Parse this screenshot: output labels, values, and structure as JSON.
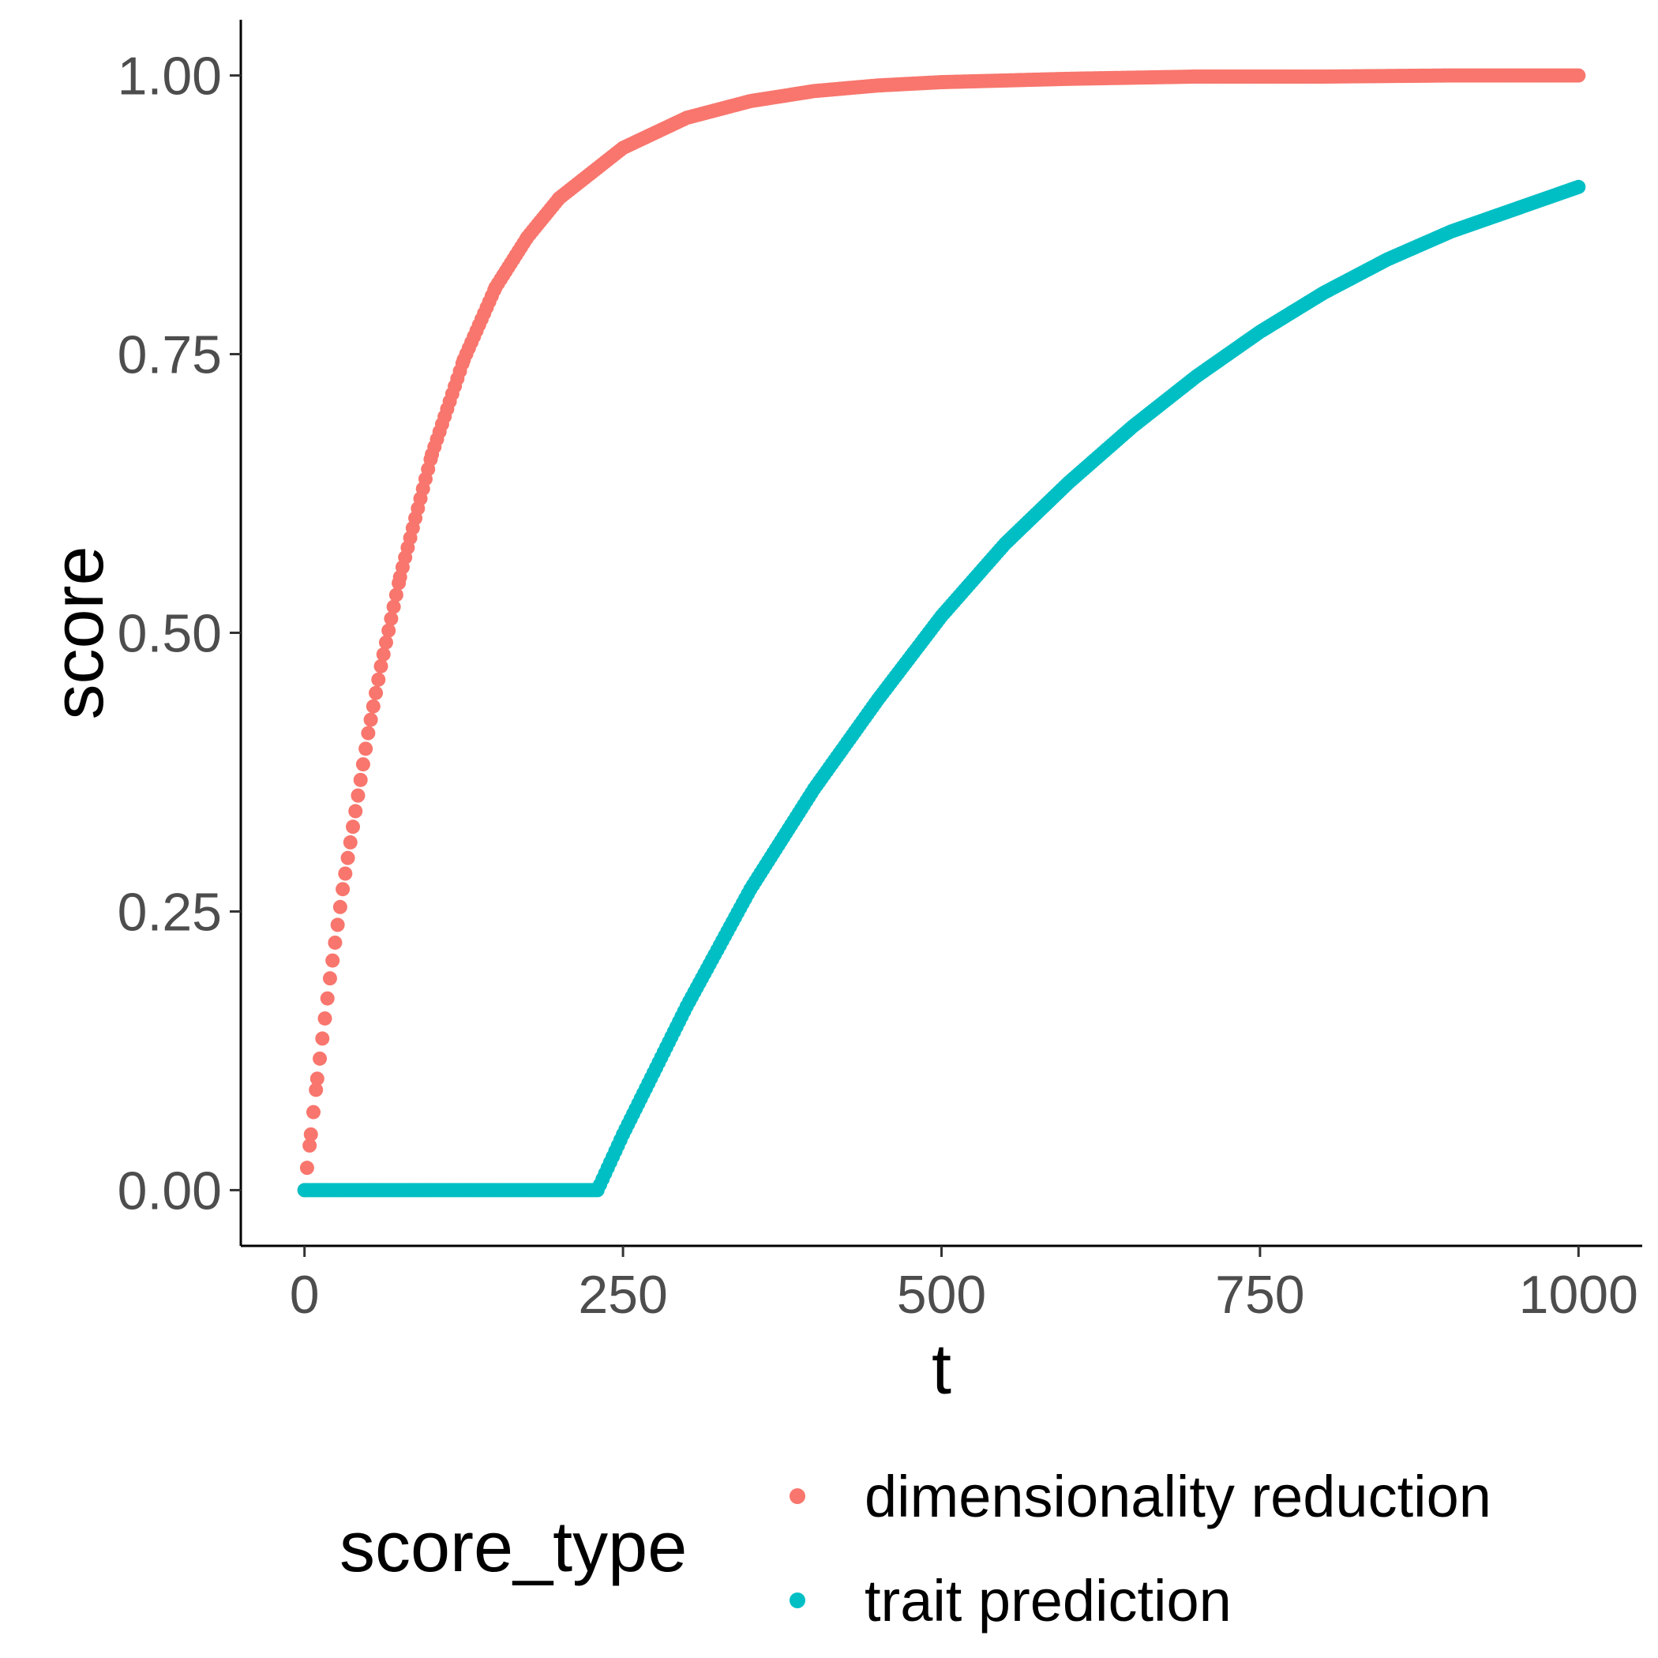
{
  "chart_data": {
    "type": "scatter",
    "xlabel": "t",
    "ylabel": "score",
    "xlim": [
      -50,
      1050
    ],
    "ylim": [
      -0.05,
      1.05
    ],
    "x_ticks": [
      0,
      250,
      500,
      750,
      1000
    ],
    "x_tick_labels": [
      "0",
      "250",
      "500",
      "750",
      "1000"
    ],
    "y_ticks": [
      0,
      0.25,
      0.5,
      0.75,
      1.0
    ],
    "y_tick_labels": [
      "0.00",
      "0.25",
      "0.50",
      "0.75",
      "1.00"
    ],
    "grid": false,
    "legend": {
      "title": "score_type",
      "placement": "bottom"
    },
    "series": [
      {
        "name": "dimensionality reduction",
        "color": "#F8766D",
        "x": [
          0,
          5,
          10,
          20,
          30,
          40,
          50,
          60,
          75,
          100,
          125,
          150,
          175,
          200,
          250,
          300,
          350,
          400,
          450,
          500,
          600,
          700,
          800,
          900,
          1000
        ],
        "y": [
          0.0,
          0.05,
          0.1,
          0.19,
          0.27,
          0.34,
          0.41,
          0.47,
          0.55,
          0.66,
          0.745,
          0.81,
          0.855,
          0.89,
          0.935,
          0.962,
          0.977,
          0.986,
          0.991,
          0.994,
          0.997,
          0.999,
          0.999,
          1.0,
          1.0
        ]
      },
      {
        "name": "trait prediction",
        "color": "#00BFC4",
        "x": [
          0,
          50,
          100,
          150,
          200,
          230,
          250,
          300,
          350,
          400,
          450,
          500,
          550,
          600,
          650,
          700,
          750,
          800,
          850,
          900,
          950,
          1000
        ],
        "y": [
          0,
          0,
          0,
          0,
          0,
          0,
          0.05,
          0.165,
          0.27,
          0.36,
          0.44,
          0.515,
          0.58,
          0.635,
          0.685,
          0.73,
          0.77,
          0.805,
          0.835,
          0.86,
          0.88,
          0.9
        ]
      }
    ]
  }
}
